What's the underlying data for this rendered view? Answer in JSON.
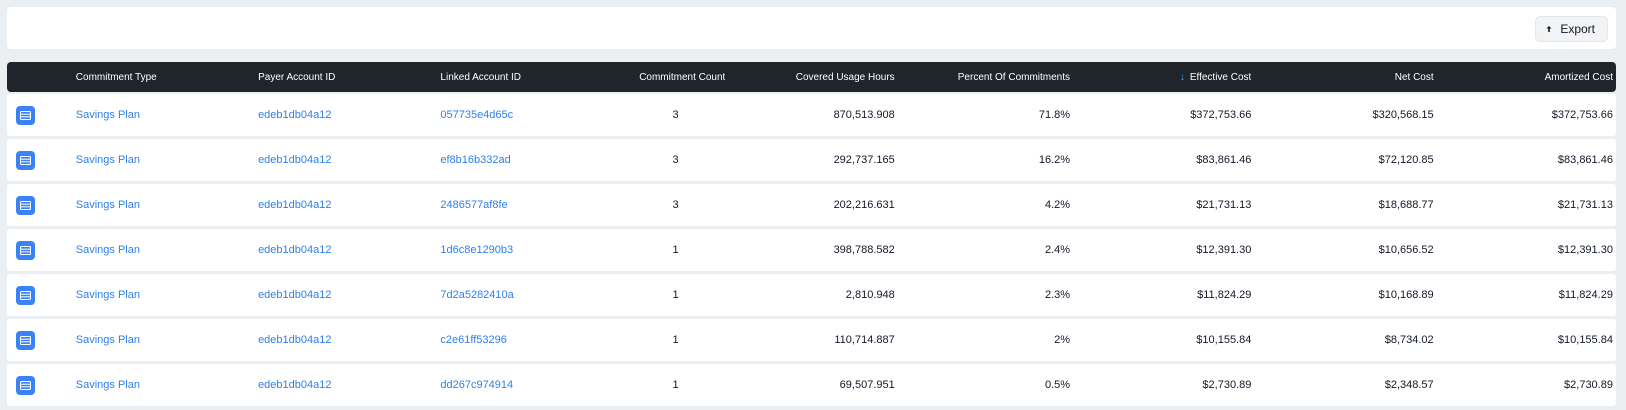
{
  "toolbar": {
    "export_label": "Export"
  },
  "table": {
    "columns": {
      "commitment_type": "Commitment Type",
      "payer_account_id": "Payer Account ID",
      "linked_account_id": "Linked Account ID",
      "commitment_count": "Commitment Count",
      "covered_usage_hours": "Covered Usage Hours",
      "percent_of_commitments": "Percent Of Commitments",
      "effective_cost": "Effective Cost",
      "net_cost": "Net Cost",
      "amortized_cost": "Amortized Cost"
    },
    "sort": {
      "column": "effective_cost",
      "direction": "descending",
      "icon": "arrow-down-icon"
    },
    "rows": [
      {
        "commitment_type": "Savings Plan",
        "payer_account_id": "edeb1db04a12",
        "linked_account_id": "057735e4d65c",
        "commitment_count": "3",
        "covered_usage_hours": "870,513.908",
        "percent_of_commitments": "71.8%",
        "effective_cost": "$372,753.66",
        "net_cost": "$320,568.15",
        "amortized_cost": "$372,753.66"
      },
      {
        "commitment_type": "Savings Plan",
        "payer_account_id": "edeb1db04a12",
        "linked_account_id": "ef8b16b332ad",
        "commitment_count": "3",
        "covered_usage_hours": "292,737.165",
        "percent_of_commitments": "16.2%",
        "effective_cost": "$83,861.46",
        "net_cost": "$72,120.85",
        "amortized_cost": "$83,861.46"
      },
      {
        "commitment_type": "Savings Plan",
        "payer_account_id": "edeb1db04a12",
        "linked_account_id": "2486577af8fe",
        "commitment_count": "3",
        "covered_usage_hours": "202,216.631",
        "percent_of_commitments": "4.2%",
        "effective_cost": "$21,731.13",
        "net_cost": "$18,688.77",
        "amortized_cost": "$21,731.13"
      },
      {
        "commitment_type": "Savings Plan",
        "payer_account_id": "edeb1db04a12",
        "linked_account_id": "1d6c8e1290b3",
        "commitment_count": "1",
        "covered_usage_hours": "398,788.582",
        "percent_of_commitments": "2.4%",
        "effective_cost": "$12,391.30",
        "net_cost": "$10,656.52",
        "amortized_cost": "$12,391.30"
      },
      {
        "commitment_type": "Savings Plan",
        "payer_account_id": "edeb1db04a12",
        "linked_account_id": "7d2a5282410a",
        "commitment_count": "1",
        "covered_usage_hours": "2,810.948",
        "percent_of_commitments": "2.3%",
        "effective_cost": "$11,824.29",
        "net_cost": "$10,168.89",
        "amortized_cost": "$11,824.29"
      },
      {
        "commitment_type": "Savings Plan",
        "payer_account_id": "edeb1db04a12",
        "linked_account_id": "c2e61ff53296",
        "commitment_count": "1",
        "covered_usage_hours": "110,714.887",
        "percent_of_commitments": "2%",
        "effective_cost": "$10,155.84",
        "net_cost": "$8,734.02",
        "amortized_cost": "$10,155.84"
      },
      {
        "commitment_type": "Savings Plan",
        "payer_account_id": "edeb1db04a12",
        "linked_account_id": "dd267c974914",
        "commitment_count": "1",
        "covered_usage_hours": "69,507.951",
        "percent_of_commitments": "0.5%",
        "effective_cost": "$2,730.89",
        "net_cost": "$2,348.57",
        "amortized_cost": "$2,730.89"
      }
    ]
  },
  "colors": {
    "header_bg": "#1f252b",
    "link": "#2f80ed",
    "row_icon": "#3b82f6",
    "page_bg": "#eceff1"
  },
  "icons": {
    "export": "export-icon",
    "row": "table-details-icon"
  }
}
